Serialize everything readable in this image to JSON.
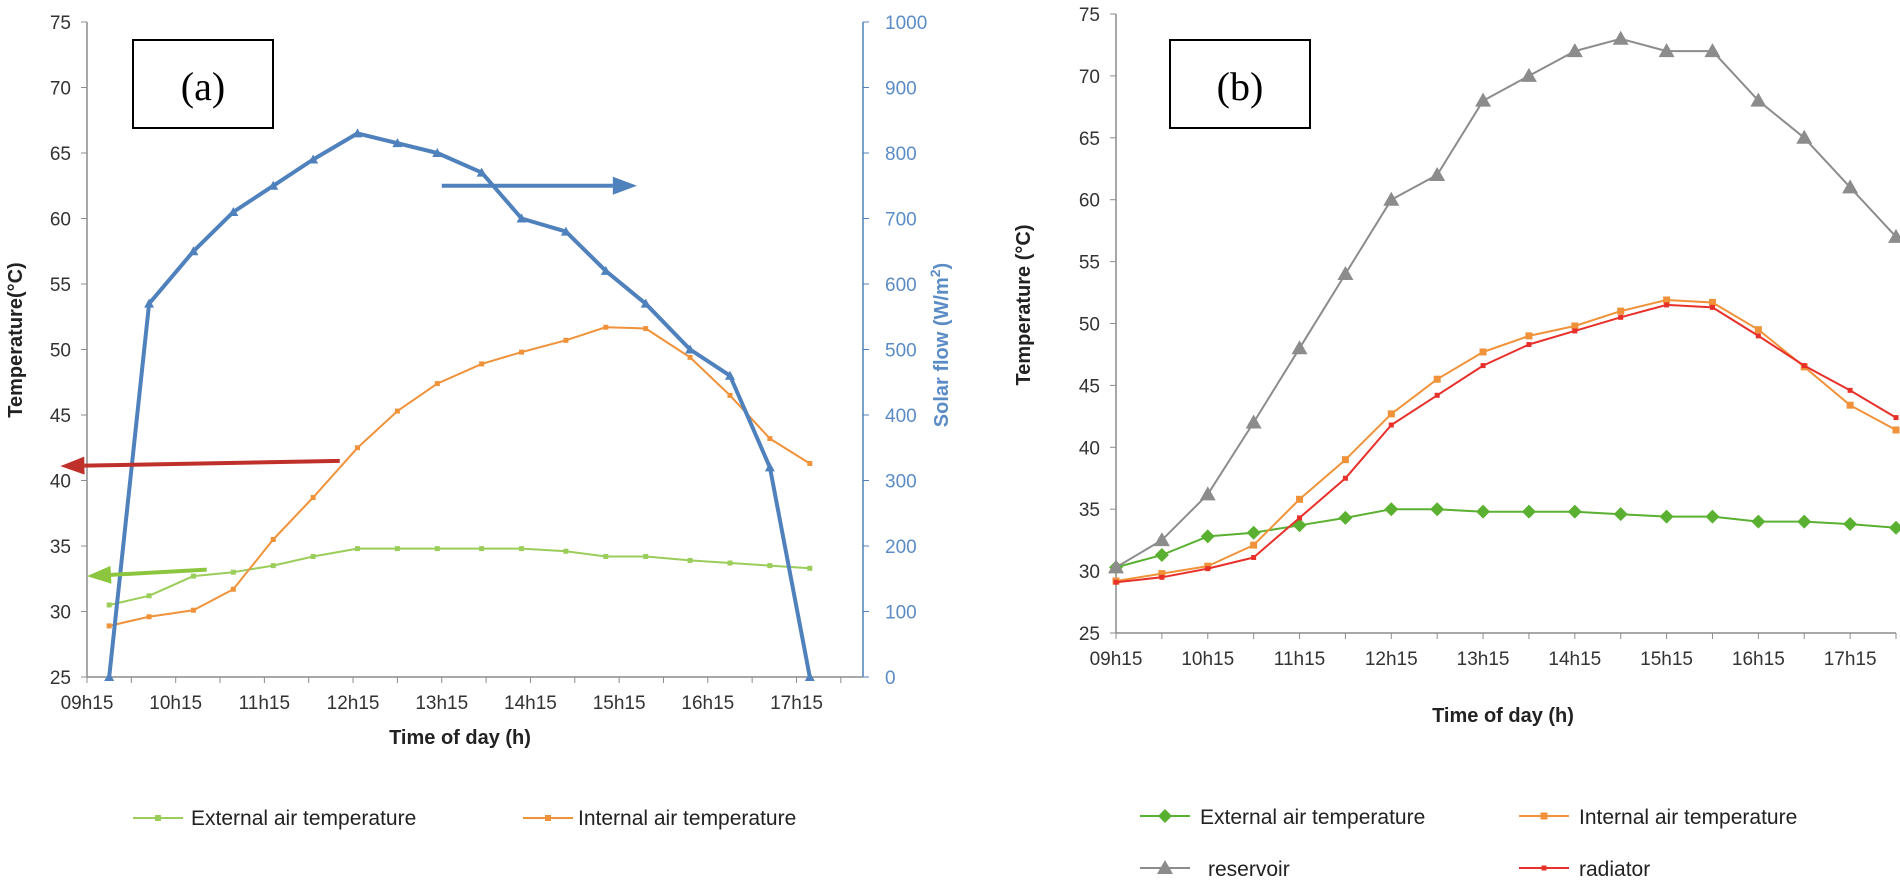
{
  "colors": {
    "external": "#9ACD5A",
    "internal": "#F0923A",
    "solar": "#4F81BD",
    "red_arrow": "#C0302B",
    "green_arrow": "#8CC63F",
    "blue_arrow": "#4F81BD",
    "external_b": "#5AB030",
    "reservoir": "#8C8C8C",
    "radiator": "#E8302A"
  },
  "chart_data": [
    {
      "type": "line",
      "panel_label": "(a)",
      "xlabel": "Time of day (h)",
      "ylabel": "Temperature(°C)",
      "y2label": "Solar flow (W/m²)",
      "y2label_parts": {
        "main": "Solar flow (W/m",
        "sup": "2",
        "end": ")"
      },
      "ylim": [
        25,
        75
      ],
      "y_ticks": [
        "25",
        "30",
        "35",
        "40",
        "45",
        "50",
        "55",
        "60",
        "65",
        "70",
        "75"
      ],
      "y2lim": [
        0,
        1000
      ],
      "y2_ticks": [
        "0",
        "100",
        "200",
        "300",
        "400",
        "500",
        "600",
        "700",
        "800",
        "900",
        "1000"
      ],
      "xlim": [
        0,
        8.75
      ],
      "x_tick_labels": [
        "09h15",
        "10h15",
        "11h15",
        "12h15",
        "13h15",
        "14h15",
        "15h15",
        "16h15",
        "17h15"
      ],
      "series": [
        {
          "name": "External  air temperature",
          "axis": "left",
          "x": [
            0.25,
            0.7,
            1.2,
            1.65,
            2.1,
            2.55,
            3.05,
            3.5,
            3.95,
            4.45,
            4.9,
            5.4,
            5.85,
            6.3,
            6.8,
            7.25,
            7.7,
            8.15
          ],
          "values": [
            30.5,
            31.2,
            32.7,
            33.0,
            33.5,
            34.2,
            34.8,
            34.8,
            34.8,
            34.8,
            34.8,
            34.6,
            34.2,
            34.2,
            33.9,
            33.7,
            33.5,
            33.3
          ]
        },
        {
          "name": "Internal air temperature",
          "axis": "left",
          "x": [
            0.25,
            0.7,
            1.2,
            1.65,
            2.1,
            2.55,
            3.05,
            3.5,
            3.95,
            4.45,
            4.9,
            5.4,
            5.85,
            6.3,
            6.8,
            7.25,
            7.7,
            8.15
          ],
          "values": [
            28.9,
            29.6,
            30.1,
            31.7,
            35.5,
            38.7,
            42.5,
            45.3,
            47.4,
            48.9,
            49.8,
            50.7,
            51.7,
            51.6,
            49.4,
            46.5,
            43.2,
            41.3
          ]
        },
        {
          "name": "Solar flow",
          "axis": "right",
          "x": [
            0.25,
            0.7,
            1.2,
            1.65,
            2.1,
            2.55,
            3.05,
            3.5,
            3.95,
            4.45,
            4.9,
            5.4,
            5.85,
            6.3,
            6.8,
            7.25,
            7.7,
            8.15
          ],
          "values": [
            0,
            570,
            650,
            710,
            750,
            790,
            830,
            815,
            800,
            770,
            700,
            680,
            620,
            570,
            500,
            460,
            320,
            0
          ]
        }
      ],
      "annotations": [
        {
          "type": "arrow",
          "direction": "left",
          "color_key": "red_arrow",
          "meaning": "internal/external temperatures read on left axis"
        },
        {
          "type": "arrow",
          "direction": "left",
          "color_key": "green_arrow",
          "meaning": "external temperature read on left axis"
        },
        {
          "type": "arrow",
          "direction": "right",
          "color_key": "blue_arrow",
          "meaning": "solar flow read on right axis"
        }
      ],
      "legend": [
        "External  air temperature",
        "Internal air temperature"
      ]
    },
    {
      "type": "line",
      "panel_label": "(b)",
      "xlabel": "Time of day (h)",
      "ylabel": "Temperature (°C)",
      "ylim": [
        25,
        75
      ],
      "y_ticks": [
        "25",
        "30",
        "35",
        "40",
        "45",
        "50",
        "55",
        "60",
        "65",
        "70",
        "75"
      ],
      "xlim": [
        0,
        8.5
      ],
      "x_tick_labels": [
        "09h15",
        "10h15",
        "11h15",
        "12h15",
        "13h15",
        "14h15",
        "15h15",
        "16h15",
        "17h15"
      ],
      "series": [
        {
          "name": "External  air temperature",
          "x": [
            0,
            0.5,
            1,
            1.5,
            2,
            2.5,
            3,
            3.5,
            4,
            4.5,
            5,
            5.5,
            6,
            6.5,
            7,
            7.5,
            8,
            8.5
          ],
          "values": [
            30.3,
            31.3,
            32.8,
            33.1,
            33.7,
            34.3,
            35.0,
            35.0,
            34.8,
            34.8,
            34.8,
            34.6,
            34.4,
            34.4,
            34.0,
            34.0,
            33.8,
            33.5
          ]
        },
        {
          "name": "Internal air temperature",
          "x": [
            0,
            0.5,
            1,
            1.5,
            2,
            2.5,
            3,
            3.5,
            4,
            4.5,
            5,
            5.5,
            6,
            6.5,
            7,
            7.5,
            8,
            8.5
          ],
          "values": [
            29.2,
            29.8,
            30.4,
            32.1,
            35.8,
            39.0,
            42.7,
            45.5,
            47.7,
            49.0,
            49.8,
            51.0,
            51.9,
            51.7,
            49.5,
            46.5,
            43.4,
            41.4
          ]
        },
        {
          "name": "reservoir",
          "x": [
            0,
            0.5,
            1,
            1.5,
            2,
            2.5,
            3,
            3.5,
            4,
            4.5,
            5,
            5.5,
            6,
            6.5,
            7,
            7.5,
            8,
            8.5
          ],
          "values": [
            30.3,
            32.5,
            36.2,
            42.0,
            48.0,
            54.0,
            60.0,
            62.0,
            68.0,
            70.0,
            72.0,
            73.0,
            72.0,
            72.0,
            68.0,
            65.0,
            61.0,
            57.0
          ]
        },
        {
          "name": "radiator",
          "x": [
            0,
            0.5,
            1,
            1.5,
            2,
            2.5,
            3,
            3.5,
            4,
            4.5,
            5,
            5.5,
            6,
            6.5,
            7,
            7.5,
            8,
            8.5
          ],
          "values": [
            29.1,
            29.5,
            30.2,
            31.1,
            34.3,
            37.5,
            41.8,
            44.2,
            46.6,
            48.3,
            49.4,
            50.5,
            51.5,
            51.3,
            49.0,
            46.6,
            44.6,
            42.4
          ]
        }
      ],
      "legend": [
        "External  air temperature",
        "Internal air temperature",
        "reservoir",
        "radiator"
      ]
    }
  ]
}
